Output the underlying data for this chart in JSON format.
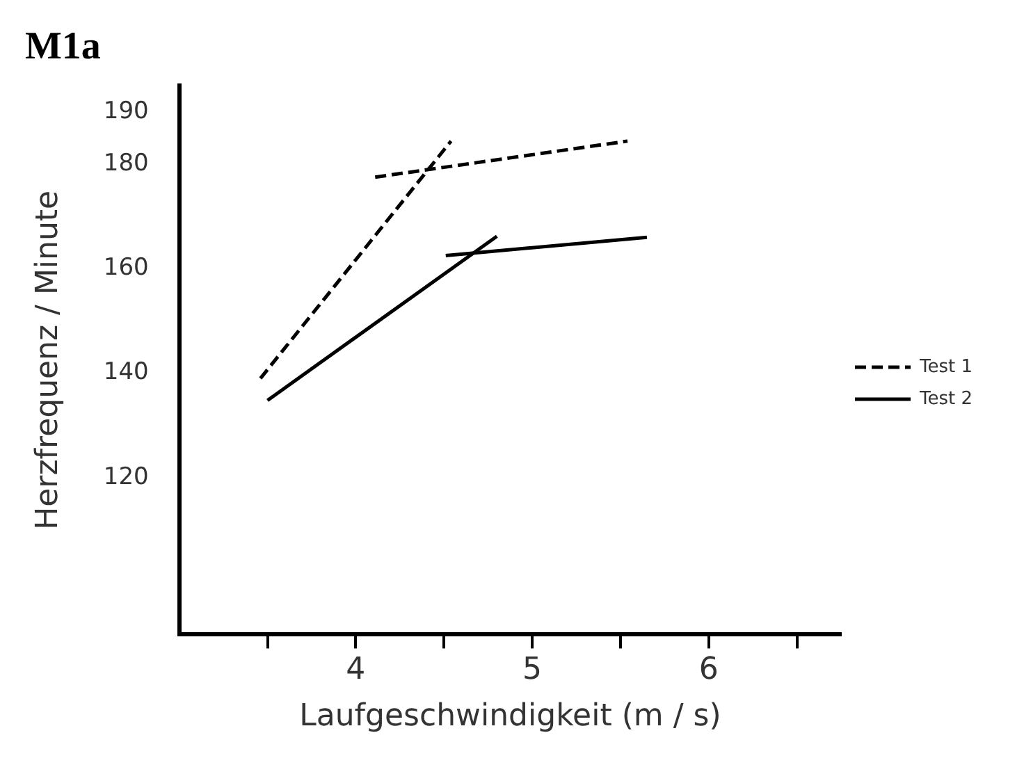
{
  "chart_data": {
    "type": "line",
    "title": "M1a",
    "xlabel": "Laufgeschwindigkeit (m / s)",
    "ylabel": "Herzfrequenz / Minute",
    "xlim": [
      3,
      6.75
    ],
    "xticks": [
      {
        "value": 3.5,
        "label": null
      },
      4,
      {
        "value": 4.5,
        "label": null
      },
      5,
      {
        "value": 5.5,
        "label": null
      },
      6,
      {
        "value": 6.5,
        "label": null
      }
    ],
    "ylim": [
      90,
      195
    ],
    "yticks": [
      120,
      140,
      160,
      180,
      190
    ],
    "grid": false,
    "legend": "right",
    "marker": "none",
    "series": [
      {
        "name": "Test 1",
        "color": "#000000",
        "line_style": "dashed",
        "x": [
          3.46,
          4.54
        ],
        "values": [
          139,
          184.4
        ]
      },
      {
        "color": "#000000",
        "line_style": "dashed",
        "x": [
          4.11,
          5.54
        ],
        "values": [
          177.5,
          184.4
        ]
      },
      {
        "name": "Test 2",
        "color": "#000000",
        "line_style": "solid",
        "x": [
          3.5,
          4.8
        ],
        "values": [
          134.8,
          166.2
        ]
      },
      {
        "color": "#000000",
        "line_style": "solid",
        "x": [
          4.51,
          5.65
        ],
        "values": [
          162.5,
          166
        ]
      }
    ]
  }
}
